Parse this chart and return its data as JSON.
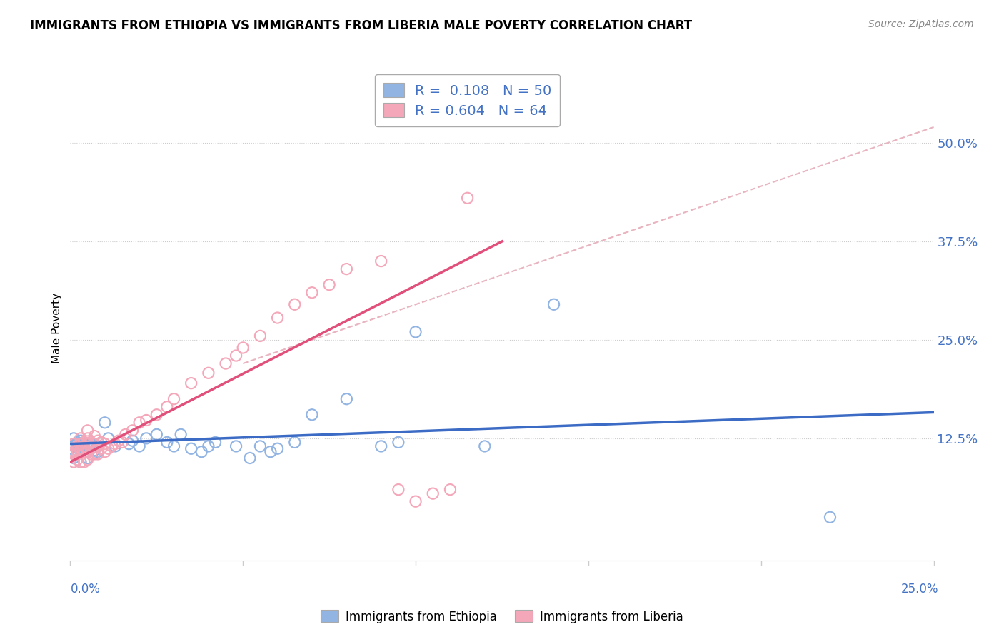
{
  "title": "IMMIGRANTS FROM ETHIOPIA VS IMMIGRANTS FROM LIBERIA MALE POVERTY CORRELATION CHART",
  "source": "Source: ZipAtlas.com",
  "ylabel": "Male Poverty",
  "y_ticks": [
    0.125,
    0.25,
    0.375,
    0.5
  ],
  "y_tick_labels": [
    "12.5%",
    "25.0%",
    "37.5%",
    "50.0%"
  ],
  "x_range": [
    0.0,
    0.25
  ],
  "y_range": [
    -0.03,
    0.56
  ],
  "ethiopia_color": "#92b4e3",
  "liberia_color": "#f4a7b9",
  "ethiopia_line_color": "#3b6bc4",
  "liberia_line_color": "#e0507a",
  "diag_color": "#e8b4c0",
  "ethiopia_R": 0.108,
  "ethiopia_N": 50,
  "liberia_R": 0.604,
  "liberia_N": 64,
  "ethiopia_trend": [
    0.0,
    0.25,
    0.118,
    0.158
  ],
  "liberia_trend": [
    0.0,
    0.125,
    0.095,
    0.375
  ],
  "diag_line": [
    0.05,
    0.25,
    0.22,
    0.52
  ],
  "ethiopia_scatter_x": [
    0.001,
    0.001,
    0.001,
    0.002,
    0.002,
    0.002,
    0.002,
    0.003,
    0.003,
    0.003,
    0.003,
    0.004,
    0.004,
    0.005,
    0.005,
    0.005,
    0.006,
    0.006,
    0.007,
    0.008,
    0.01,
    0.011,
    0.013,
    0.015,
    0.017,
    0.018,
    0.02,
    0.022,
    0.025,
    0.028,
    0.03,
    0.032,
    0.035,
    0.038,
    0.04,
    0.042,
    0.048,
    0.052,
    0.055,
    0.058,
    0.06,
    0.065,
    0.07,
    0.08,
    0.09,
    0.095,
    0.1,
    0.12,
    0.14,
    0.22
  ],
  "ethiopia_scatter_y": [
    0.115,
    0.125,
    0.1,
    0.11,
    0.12,
    0.118,
    0.105,
    0.108,
    0.115,
    0.122,
    0.095,
    0.112,
    0.118,
    0.108,
    0.115,
    0.1,
    0.112,
    0.118,
    0.11,
    0.108,
    0.145,
    0.125,
    0.115,
    0.12,
    0.118,
    0.122,
    0.115,
    0.125,
    0.13,
    0.12,
    0.115,
    0.13,
    0.112,
    0.108,
    0.115,
    0.12,
    0.115,
    0.1,
    0.115,
    0.108,
    0.112,
    0.12,
    0.155,
    0.175,
    0.115,
    0.12,
    0.26,
    0.115,
    0.295,
    0.025
  ],
  "liberia_scatter_x": [
    0.001,
    0.001,
    0.001,
    0.001,
    0.002,
    0.002,
    0.002,
    0.002,
    0.003,
    0.003,
    0.003,
    0.003,
    0.003,
    0.004,
    0.004,
    0.004,
    0.004,
    0.005,
    0.005,
    0.005,
    0.005,
    0.005,
    0.006,
    0.006,
    0.006,
    0.007,
    0.007,
    0.007,
    0.008,
    0.008,
    0.008,
    0.009,
    0.009,
    0.01,
    0.01,
    0.011,
    0.012,
    0.013,
    0.014,
    0.015,
    0.016,
    0.018,
    0.02,
    0.022,
    0.025,
    0.028,
    0.03,
    0.035,
    0.04,
    0.045,
    0.048,
    0.05,
    0.055,
    0.06,
    0.065,
    0.07,
    0.075,
    0.08,
    0.09,
    0.095,
    0.1,
    0.105,
    0.11,
    0.115
  ],
  "liberia_scatter_y": [
    0.095,
    0.105,
    0.108,
    0.118,
    0.098,
    0.105,
    0.11,
    0.115,
    0.095,
    0.108,
    0.112,
    0.118,
    0.125,
    0.095,
    0.108,
    0.115,
    0.12,
    0.098,
    0.108,
    0.118,
    0.125,
    0.135,
    0.105,
    0.112,
    0.12,
    0.105,
    0.118,
    0.128,
    0.105,
    0.115,
    0.122,
    0.112,
    0.12,
    0.108,
    0.118,
    0.112,
    0.115,
    0.118,
    0.122,
    0.12,
    0.13,
    0.135,
    0.145,
    0.148,
    0.155,
    0.165,
    0.175,
    0.195,
    0.208,
    0.22,
    0.23,
    0.24,
    0.255,
    0.278,
    0.295,
    0.31,
    0.32,
    0.34,
    0.35,
    0.06,
    0.045,
    0.055,
    0.06,
    0.43
  ]
}
